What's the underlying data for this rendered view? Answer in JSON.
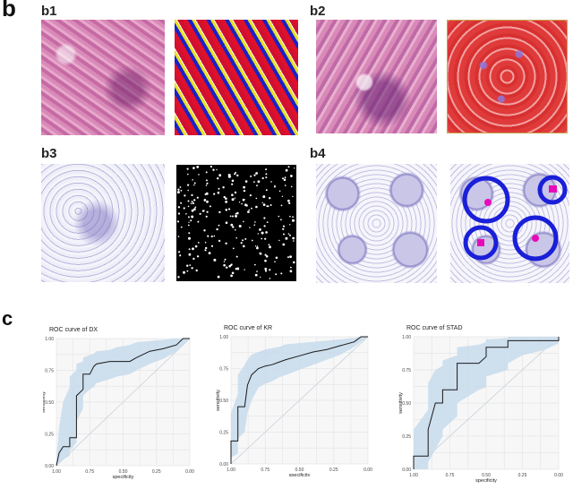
{
  "panel_b": {
    "letter": "b",
    "subpanels": [
      {
        "label": "b1"
      },
      {
        "label": "b2"
      },
      {
        "label": "b3"
      },
      {
        "label": "b4"
      }
    ]
  },
  "panel_c": {
    "letter": "c"
  },
  "colors": {
    "roc_line": "#1a1a1a",
    "ci_band": "#c9dcec",
    "diagonal": "#c8d2dc",
    "circle": "#1a1fd8",
    "nucleus": "#e80ab8"
  },
  "chart_data": [
    {
      "type": "line",
      "title": "ROC curve of DX",
      "xlabel": "specificity",
      "ylabel": "sensitivity",
      "x_ticks": [
        "1.00",
        "0.75",
        "0.50",
        "0.25",
        "0.00"
      ],
      "y_ticks": [
        "0.00",
        "0.25",
        "0.50",
        "0.75",
        "1.00"
      ],
      "xlim": [
        1.0,
        0.0
      ],
      "ylim": [
        0.0,
        1.0
      ],
      "grid": true,
      "x": [
        1.0,
        0.98,
        0.95,
        0.9,
        0.9,
        0.85,
        0.85,
        0.8,
        0.8,
        0.75,
        0.72,
        0.7,
        0.6,
        0.55,
        0.45,
        0.4,
        0.3,
        0.2,
        0.1,
        0.05,
        0.0
      ],
      "y": [
        0.0,
        0.1,
        0.15,
        0.15,
        0.22,
        0.22,
        0.55,
        0.6,
        0.72,
        0.72,
        0.78,
        0.8,
        0.82,
        0.82,
        0.82,
        0.85,
        0.9,
        0.92,
        0.95,
        1.0,
        1.0
      ],
      "ci_upper": [
        0.05,
        0.3,
        0.5,
        0.62,
        0.7,
        0.75,
        0.8,
        0.82,
        0.85,
        0.87,
        0.88,
        0.9,
        0.91,
        0.93,
        0.95,
        0.97,
        0.98,
        0.99,
        1.0,
        1.0,
        1.0
      ],
      "ci_lower": [
        0.0,
        0.02,
        0.05,
        0.08,
        0.12,
        0.18,
        0.35,
        0.45,
        0.55,
        0.6,
        0.62,
        0.65,
        0.68,
        0.7,
        0.72,
        0.75,
        0.8,
        0.84,
        0.9,
        0.95,
        1.0
      ]
    },
    {
      "type": "line",
      "title": "ROC curve of KR",
      "xlabel": "specificity",
      "ylabel": "sensitivity",
      "x_ticks": [
        "1.00",
        "0.75",
        "0.50",
        "0.25",
        "0.00"
      ],
      "y_ticks": [
        "0.00",
        "0.25",
        "0.50",
        "0.75",
        "1.00"
      ],
      "xlim": [
        1.0,
        0.0
      ],
      "ylim": [
        0.0,
        1.0
      ],
      "grid": true,
      "x": [
        1.0,
        1.0,
        0.95,
        0.95,
        0.9,
        0.88,
        0.85,
        0.8,
        0.75,
        0.7,
        0.65,
        0.6,
        0.5,
        0.4,
        0.3,
        0.2,
        0.1,
        0.05,
        0.0
      ],
      "y": [
        0.0,
        0.18,
        0.18,
        0.45,
        0.45,
        0.62,
        0.7,
        0.75,
        0.77,
        0.78,
        0.8,
        0.82,
        0.85,
        0.88,
        0.9,
        0.93,
        0.96,
        1.0,
        1.0
      ],
      "ci_upper": [
        0.05,
        0.4,
        0.55,
        0.7,
        0.78,
        0.82,
        0.86,
        0.88,
        0.9,
        0.91,
        0.92,
        0.94,
        0.95,
        0.96,
        0.97,
        0.98,
        0.99,
        1.0,
        1.0
      ],
      "ci_lower": [
        0.0,
        0.05,
        0.08,
        0.2,
        0.25,
        0.4,
        0.5,
        0.6,
        0.63,
        0.65,
        0.68,
        0.7,
        0.74,
        0.78,
        0.82,
        0.86,
        0.92,
        0.96,
        1.0
      ]
    },
    {
      "type": "line",
      "title": "ROC curve of STAD",
      "xlabel": "specificity",
      "ylabel": "sensitivity",
      "x_ticks": [
        "1.00",
        "0.75",
        "0.50",
        "0.25",
        "0.00"
      ],
      "y_ticks": [
        "0.00",
        "0.25",
        "0.50",
        "0.75",
        "1.00"
      ],
      "xlim": [
        1.0,
        0.0
      ],
      "ylim": [
        0.0,
        1.0
      ],
      "grid": true,
      "x": [
        1.0,
        1.0,
        0.9,
        0.9,
        0.85,
        0.8,
        0.8,
        0.7,
        0.7,
        0.55,
        0.5,
        0.5,
        0.35,
        0.35,
        0.25,
        0.1,
        0.0,
        0.0
      ],
      "y": [
        0.0,
        0.1,
        0.1,
        0.3,
        0.5,
        0.5,
        0.6,
        0.6,
        0.8,
        0.8,
        0.85,
        0.92,
        0.92,
        0.97,
        0.97,
        0.97,
        0.97,
        1.0
      ],
      "ci_upper": [
        0.05,
        0.3,
        0.45,
        0.65,
        0.75,
        0.78,
        0.82,
        0.86,
        0.92,
        0.94,
        0.96,
        0.98,
        0.99,
        1.0,
        1.0,
        1.0,
        1.0,
        1.0
      ],
      "ci_lower": [
        0.0,
        0.0,
        0.0,
        0.05,
        0.15,
        0.25,
        0.3,
        0.4,
        0.5,
        0.6,
        0.62,
        0.7,
        0.75,
        0.8,
        0.86,
        0.9,
        0.95,
        1.0
      ]
    }
  ]
}
